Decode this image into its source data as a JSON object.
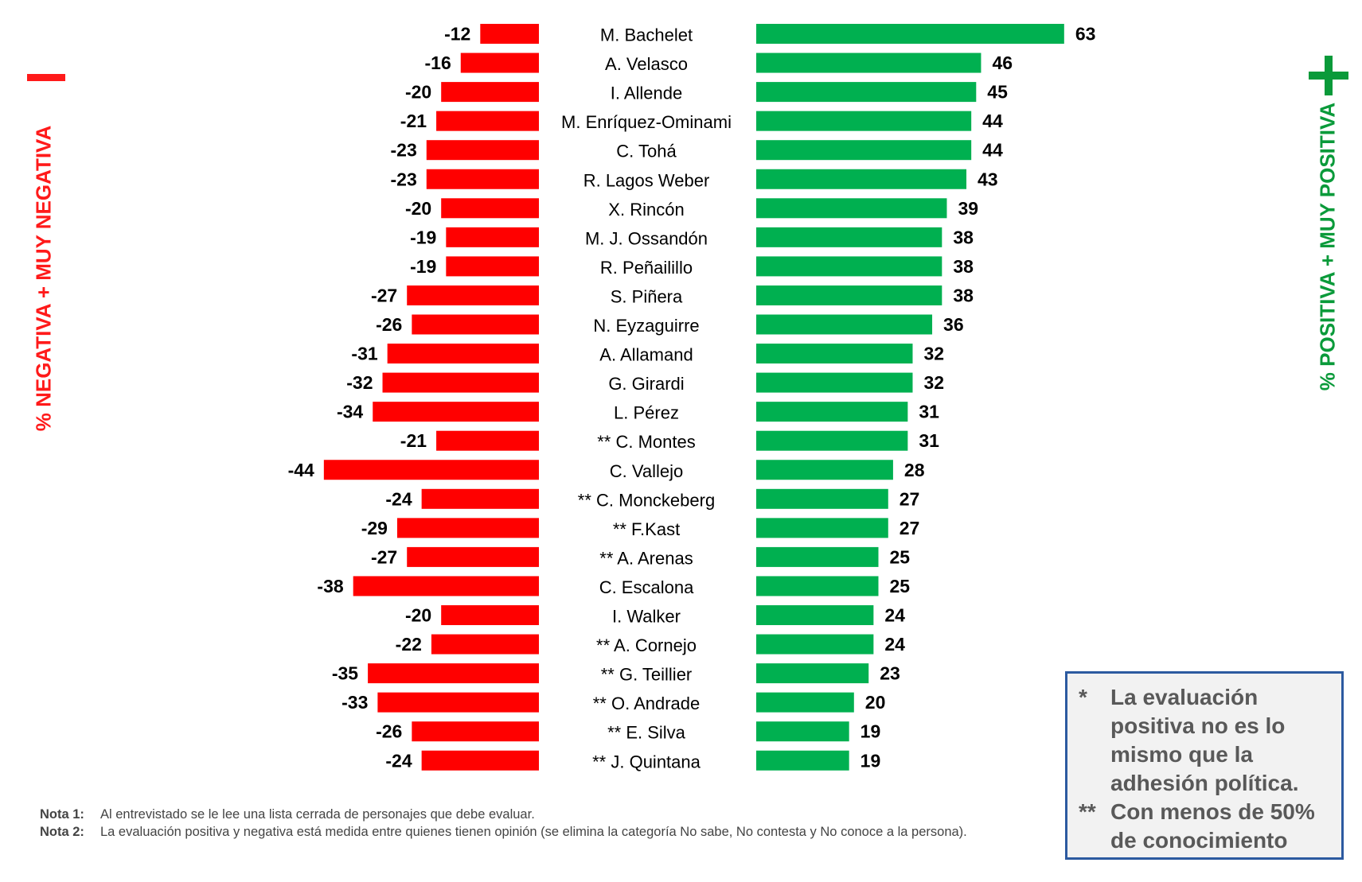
{
  "side_titles": {
    "negative": "% NEGATIVA + MUY NEGATIVA",
    "positive": "% POSITIVA + MUY POSITIVA"
  },
  "colors": {
    "negative": "#ff0000",
    "positive": "#00b050"
  },
  "chart_data": {
    "type": "bar",
    "categories": [
      "M. Bachelet",
      "A. Velasco",
      "I. Allende",
      "M. Enríquez-Ominami",
      "C. Tohá",
      "R. Lagos Weber",
      "X. Rincón",
      "M. J. Ossandón",
      "R. Peñailillo",
      "S. Piñera",
      "N. Eyzaguirre",
      "A. Allamand",
      "G. Girardi",
      "L. Pérez",
      "** C. Montes",
      "C. Vallejo",
      "** C. Monckeberg",
      "** F.Kast",
      "** A. Arenas",
      "C. Escalona",
      "I. Walker",
      "** A. Cornejo",
      "** G. Teillier",
      "** O. Andrade",
      "** E. Silva",
      "** J. Quintana"
    ],
    "series": [
      {
        "name": "% NEGATIVA + MUY NEGATIVA",
        "values": [
          -12,
          -16,
          -20,
          -21,
          -23,
          -23,
          -20,
          -19,
          -19,
          -27,
          -26,
          -31,
          -32,
          -34,
          -21,
          -44,
          -24,
          -29,
          -27,
          -38,
          -20,
          -22,
          -35,
          -33,
          -26,
          -24
        ]
      },
      {
        "name": "% POSITIVA + MUY POSITIVA",
        "values": [
          63,
          46,
          45,
          44,
          44,
          43,
          39,
          38,
          38,
          38,
          36,
          32,
          32,
          31,
          31,
          28,
          27,
          27,
          25,
          25,
          24,
          24,
          23,
          20,
          19,
          19
        ]
      }
    ],
    "title": "",
    "xlabel": "",
    "ylabel": "",
    "legend": "side labels"
  },
  "notes": [
    {
      "label": "Nota 1:",
      "text": "Al entrevistado se le lee una lista cerrada de personajes que debe evaluar."
    },
    {
      "label": "Nota 2:",
      "text": "La evaluación positiva y negativa está medida entre quienes tienen opinión (se elimina la categoría No sabe, No contesta y No conoce a la persona)."
    }
  ],
  "callout": [
    {
      "mark": "*",
      "text": "La evaluación positiva no es lo mismo que la adhesión política."
    },
    {
      "mark": "**",
      "text": "Con menos de 50% de conocimiento"
    }
  ],
  "icons": {
    "negative_side": "minus-icon",
    "positive_side": "plus-icon"
  }
}
